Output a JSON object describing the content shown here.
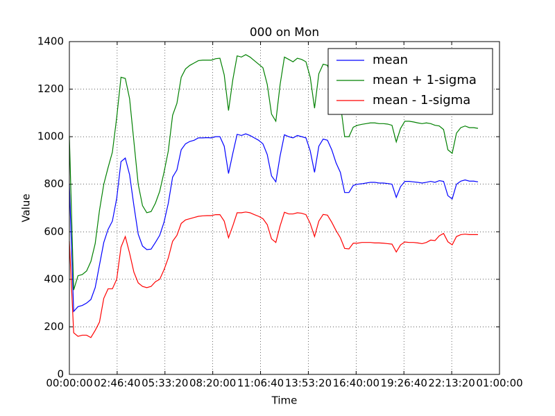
{
  "chart_data": {
    "type": "line",
    "title": "000 on Mon",
    "xlabel": "Time",
    "ylabel": "Value",
    "x": [
      0,
      900,
      1800,
      2700,
      3600,
      4500,
      5400,
      6300,
      7200,
      8100,
      9000,
      9900,
      10800,
      11700,
      12600,
      13500,
      14400,
      15300,
      16200,
      17100,
      18000,
      18900,
      19800,
      20700,
      21600,
      22500,
      23400,
      24300,
      25200,
      26100,
      27000,
      27900,
      28800,
      29700,
      30600,
      31500,
      32400,
      33300,
      34200,
      35100,
      36000,
      36900,
      37800,
      38700,
      39600,
      40500,
      41400,
      42300,
      43200,
      44100,
      45000,
      45900,
      46800,
      47700,
      48600,
      49500,
      50400,
      51300,
      52200,
      53100,
      54000,
      54900,
      55800,
      56700,
      57600,
      58500,
      59400,
      60300,
      61200,
      62100,
      63000,
      63900,
      64800,
      65700,
      66600,
      67500,
      68400,
      69300,
      70200,
      71100,
      72000,
      72900,
      73800,
      74700,
      75600,
      76500,
      77400,
      78300,
      79200,
      80100,
      81000,
      81900,
      82800,
      83700,
      84600,
      85500
    ],
    "series": [
      {
        "name": "mean",
        "color": "#0000ff",
        "values": [
          800,
          265,
          285,
          290,
          300,
          315,
          365,
          460,
          555,
          610,
          645,
          740,
          895,
          910,
          840,
          710,
          590,
          540,
          525,
          527,
          555,
          585,
          640,
          720,
          830,
          860,
          945,
          970,
          980,
          985,
          995,
          995,
          996,
          995,
          1000,
          1000,
          960,
          845,
          930,
          1010,
          1005,
          1012,
          1005,
          995,
          985,
          970,
          925,
          835,
          810,
          920,
          1008,
          1000,
          995,
          1005,
          1000,
          995,
          940,
          850,
          960,
          990,
          985,
          945,
          890,
          850,
          765,
          765,
          795,
          800,
          802,
          805,
          808,
          808,
          805,
          805,
          803,
          800,
          745,
          790,
          812,
          812,
          810,
          808,
          805,
          808,
          812,
          808,
          815,
          812,
          752,
          738,
          800,
          813,
          818,
          813,
          813,
          810
        ]
      },
      {
        "name": "mean + 1-sigma",
        "color": "#008000",
        "values": [
          1000,
          355,
          415,
          420,
          435,
          475,
          550,
          690,
          800,
          870,
          935,
          1080,
          1250,
          1245,
          1160,
          980,
          800,
          710,
          680,
          685,
          720,
          770,
          850,
          940,
          1090,
          1140,
          1250,
          1285,
          1300,
          1310,
          1320,
          1322,
          1322,
          1322,
          1328,
          1330,
          1260,
          1110,
          1240,
          1340,
          1335,
          1345,
          1335,
          1320,
          1305,
          1290,
          1220,
          1095,
          1065,
          1220,
          1335,
          1325,
          1315,
          1330,
          1325,
          1315,
          1250,
          1120,
          1265,
          1305,
          1300,
          1245,
          1180,
          1140,
          1000,
          1000,
          1040,
          1048,
          1052,
          1055,
          1058,
          1058,
          1055,
          1055,
          1053,
          1048,
          978,
          1035,
          1065,
          1065,
          1062,
          1058,
          1055,
          1058,
          1055,
          1048,
          1045,
          1030,
          945,
          930,
          1015,
          1038,
          1045,
          1038,
          1038,
          1035
        ]
      },
      {
        "name": "mean - 1-sigma",
        "color": "#ff0000",
        "values": [
          560,
          175,
          160,
          165,
          165,
          155,
          185,
          220,
          320,
          360,
          360,
          400,
          535,
          580,
          510,
          430,
          385,
          370,
          365,
          370,
          390,
          400,
          440,
          490,
          560,
          585,
          635,
          650,
          655,
          660,
          665,
          667,
          668,
          668,
          672,
          672,
          645,
          575,
          625,
          680,
          680,
          683,
          680,
          672,
          665,
          655,
          630,
          570,
          555,
          625,
          682,
          675,
          675,
          680,
          678,
          672,
          635,
          580,
          645,
          673,
          670,
          640,
          605,
          575,
          530,
          528,
          552,
          552,
          555,
          555,
          555,
          553,
          553,
          552,
          550,
          548,
          515,
          545,
          557,
          555,
          555,
          553,
          550,
          555,
          565,
          563,
          583,
          593,
          558,
          545,
          580,
          588,
          590,
          588,
          588,
          588
        ]
      }
    ],
    "xlim": [
      0,
      90000
    ],
    "xticks": [
      {
        "value": 0,
        "label": "00:00:00"
      },
      {
        "value": 10000,
        "label": "02:46:40"
      },
      {
        "value": 20000,
        "label": "05:33:20"
      },
      {
        "value": 30000,
        "label": "08:20:00"
      },
      {
        "value": 40000,
        "label": "11:06:40"
      },
      {
        "value": 50000,
        "label": "13:53:20"
      },
      {
        "value": 60000,
        "label": "16:40:00"
      },
      {
        "value": 70000,
        "label": "19:26:40"
      },
      {
        "value": 80000,
        "label": "22:13:20"
      },
      {
        "value": 90000,
        "label": "01:00:00"
      }
    ],
    "ylim": [
      0,
      1400
    ],
    "yticks": [
      0,
      200,
      400,
      600,
      800,
      1000,
      1200,
      1400
    ],
    "grid": true,
    "legend": "upper right"
  }
}
